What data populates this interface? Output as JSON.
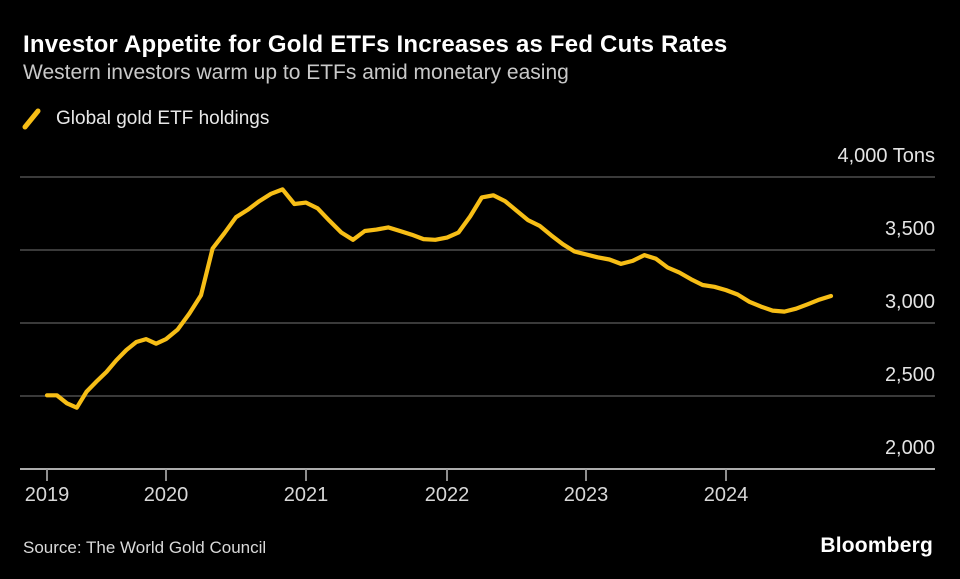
{
  "header": {
    "title": "Investor Appetite for Gold ETFs Increases as Fed Cuts Rates",
    "subtitle": "Western investors warm up to ETFs amid monetary easing"
  },
  "legend": {
    "label": "Global gold ETF holdings"
  },
  "footer": {
    "source": "Source: The World Gold Council",
    "brand": "Bloomberg"
  },
  "colors": {
    "background": "#000000",
    "line": "#F7BE16",
    "grid": "#4d4d4d",
    "axis": "#c4c4c4",
    "tick": "#9f9f9f",
    "title_text": "#ffffff",
    "subtitle_text": "#c9c9c9",
    "y_label_text": "#e4e4e4",
    "x_label_text": "#d8d8d8"
  },
  "chart_data": {
    "type": "line",
    "title": "Global gold ETF holdings",
    "unit": "Tons",
    "legend_position": "top-left",
    "grid": true,
    "x_axis": {
      "tick_years": [
        2019,
        2020,
        2021,
        2022,
        2023,
        2024
      ],
      "range": [
        2019.0,
        2024.75
      ]
    },
    "y_axis": {
      "side": "right",
      "range": [
        2000,
        4000
      ],
      "ticks": [
        {
          "value": 4000,
          "label": "4,000 Tons"
        },
        {
          "value": 3500,
          "label": "3,500"
        },
        {
          "value": 3000,
          "label": "3,000"
        },
        {
          "value": 2500,
          "label": "2,500"
        },
        {
          "value": 2000,
          "label": "2,000"
        }
      ]
    },
    "series": [
      {
        "name": "Global gold ETF holdings",
        "color": "#F7BE16",
        "points": [
          [
            2019.0,
            2505
          ],
          [
            2019.083,
            2505
          ],
          [
            2019.167,
            2450
          ],
          [
            2019.25,
            2420
          ],
          [
            2019.333,
            2530
          ],
          [
            2019.417,
            2600
          ],
          [
            2019.5,
            2665
          ],
          [
            2019.583,
            2745
          ],
          [
            2019.667,
            2815
          ],
          [
            2019.75,
            2870
          ],
          [
            2019.833,
            2890
          ],
          [
            2019.917,
            2858
          ],
          [
            2020.0,
            2890
          ],
          [
            2020.083,
            2955
          ],
          [
            2020.167,
            3065
          ],
          [
            2020.25,
            3190
          ],
          [
            2020.333,
            3510
          ],
          [
            2020.417,
            3615
          ],
          [
            2020.5,
            3725
          ],
          [
            2020.583,
            3775
          ],
          [
            2020.667,
            3835
          ],
          [
            2020.75,
            3885
          ],
          [
            2020.833,
            3915
          ],
          [
            2020.917,
            3815
          ],
          [
            2021.0,
            3825
          ],
          [
            2021.083,
            3785
          ],
          [
            2021.167,
            3700
          ],
          [
            2021.25,
            3620
          ],
          [
            2021.333,
            3570
          ],
          [
            2021.417,
            3630
          ],
          [
            2021.5,
            3640
          ],
          [
            2021.583,
            3655
          ],
          [
            2021.667,
            3630
          ],
          [
            2021.75,
            3605
          ],
          [
            2021.833,
            3575
          ],
          [
            2021.917,
            3570
          ],
          [
            2022.0,
            3585
          ],
          [
            2022.083,
            3620
          ],
          [
            2022.167,
            3730
          ],
          [
            2022.25,
            3860
          ],
          [
            2022.333,
            3875
          ],
          [
            2022.417,
            3835
          ],
          [
            2022.5,
            3770
          ],
          [
            2022.583,
            3705
          ],
          [
            2022.667,
            3665
          ],
          [
            2022.75,
            3600
          ],
          [
            2022.833,
            3540
          ],
          [
            2022.917,
            3490
          ],
          [
            2023.0,
            3470
          ],
          [
            2023.083,
            3450
          ],
          [
            2023.167,
            3435
          ],
          [
            2023.25,
            3405
          ],
          [
            2023.333,
            3425
          ],
          [
            2023.417,
            3465
          ],
          [
            2023.5,
            3440
          ],
          [
            2023.583,
            3380
          ],
          [
            2023.667,
            3345
          ],
          [
            2023.75,
            3300
          ],
          [
            2023.833,
            3260
          ],
          [
            2023.917,
            3248
          ],
          [
            2024.0,
            3225
          ],
          [
            2024.083,
            3195
          ],
          [
            2024.167,
            3145
          ],
          [
            2024.25,
            3112
          ],
          [
            2024.333,
            3085
          ],
          [
            2024.417,
            3078
          ],
          [
            2024.5,
            3098
          ],
          [
            2024.583,
            3128
          ],
          [
            2024.667,
            3160
          ],
          [
            2024.75,
            3185
          ]
        ]
      }
    ]
  }
}
